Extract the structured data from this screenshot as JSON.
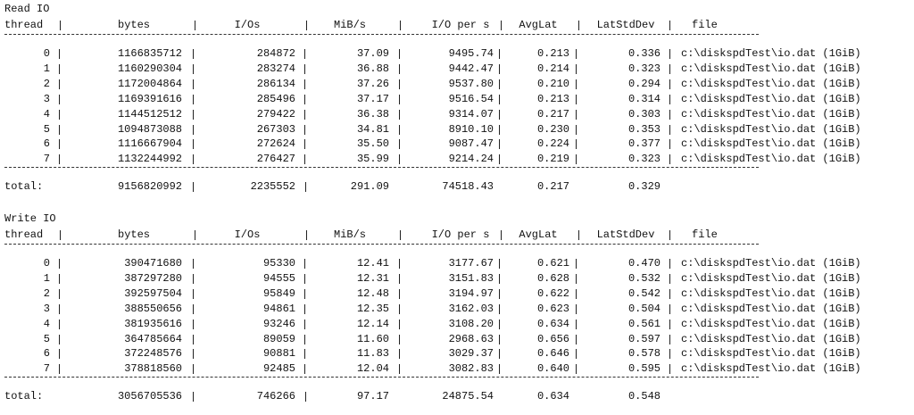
{
  "sections": [
    {
      "title": "Read IO",
      "header": [
        "thread",
        "bytes",
        "I/Os",
        "MiB/s",
        "I/O per s",
        "AvgLat",
        "LatStdDev",
        "file"
      ],
      "rows": [
        [
          "0",
          "1166835712",
          "284872",
          "37.09",
          "9495.74",
          "0.213",
          "0.336",
          "c:\\diskspdTest\\io.dat (1GiB)"
        ],
        [
          "1",
          "1160290304",
          "283274",
          "36.88",
          "9442.47",
          "0.214",
          "0.323",
          "c:\\diskspdTest\\io.dat (1GiB)"
        ],
        [
          "2",
          "1172004864",
          "286134",
          "37.26",
          "9537.80",
          "0.210",
          "0.294",
          "c:\\diskspdTest\\io.dat (1GiB)"
        ],
        [
          "3",
          "1169391616",
          "285496",
          "37.17",
          "9516.54",
          "0.213",
          "0.314",
          "c:\\diskspdTest\\io.dat (1GiB)"
        ],
        [
          "4",
          "1144512512",
          "279422",
          "36.38",
          "9314.07",
          "0.217",
          "0.303",
          "c:\\diskspdTest\\io.dat (1GiB)"
        ],
        [
          "5",
          "1094873088",
          "267303",
          "34.81",
          "8910.10",
          "0.230",
          "0.353",
          "c:\\diskspdTest\\io.dat (1GiB)"
        ],
        [
          "6",
          "1116667904",
          "272624",
          "35.50",
          "9087.47",
          "0.224",
          "0.377",
          "c:\\diskspdTest\\io.dat (1GiB)"
        ],
        [
          "7",
          "1132244992",
          "276427",
          "35.99",
          "9214.24",
          "0.219",
          "0.323",
          "c:\\diskspdTest\\io.dat (1GiB)"
        ]
      ],
      "total": {
        "label": "total:",
        "values": [
          "9156820992",
          "2235552",
          "291.09",
          "74518.43",
          "0.217",
          "0.329"
        ]
      }
    },
    {
      "title": "Write IO",
      "header": [
        "thread",
        "bytes",
        "I/Os",
        "MiB/s",
        "I/O per s",
        "AvgLat",
        "LatStdDev",
        "file"
      ],
      "rows": [
        [
          "0",
          "390471680",
          "95330",
          "12.41",
          "3177.67",
          "0.621",
          "0.470",
          "c:\\diskspdTest\\io.dat (1GiB)"
        ],
        [
          "1",
          "387297280",
          "94555",
          "12.31",
          "3151.83",
          "0.628",
          "0.532",
          "c:\\diskspdTest\\io.dat (1GiB)"
        ],
        [
          "2",
          "392597504",
          "95849",
          "12.48",
          "3194.97",
          "0.622",
          "0.542",
          "c:\\diskspdTest\\io.dat (1GiB)"
        ],
        [
          "3",
          "388550656",
          "94861",
          "12.35",
          "3162.03",
          "0.623",
          "0.504",
          "c:\\diskspdTest\\io.dat (1GiB)"
        ],
        [
          "4",
          "381935616",
          "93246",
          "12.14",
          "3108.20",
          "0.634",
          "0.561",
          "c:\\diskspdTest\\io.dat (1GiB)"
        ],
        [
          "5",
          "364785664",
          "89059",
          "11.60",
          "2968.63",
          "0.656",
          "0.597",
          "c:\\diskspdTest\\io.dat (1GiB)"
        ],
        [
          "6",
          "372248576",
          "90881",
          "11.83",
          "3029.37",
          "0.646",
          "0.578",
          "c:\\diskspdTest\\io.dat (1GiB)"
        ],
        [
          "7",
          "378818560",
          "92485",
          "12.04",
          "3082.83",
          "0.640",
          "0.595",
          "c:\\diskspdTest\\io.dat (1GiB)"
        ]
      ],
      "total": {
        "label": "total:",
        "values": [
          "3056705536",
          "746266",
          "97.17",
          "24875.54",
          "0.634",
          "0.548"
        ]
      }
    }
  ]
}
